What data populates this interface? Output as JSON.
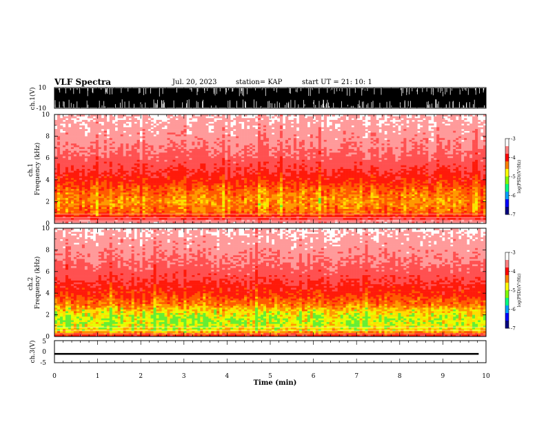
{
  "header": {
    "title": "VLF Spectra",
    "date": "Jul. 20, 2023",
    "station": "station= KAP",
    "start": "start UT =  21: 10: 1"
  },
  "chart_data": [
    {
      "type": "line",
      "name": "ch1-waveform",
      "ylabel": "ch.1(V)",
      "ylim": [
        -10,
        10
      ],
      "yticks": [
        "10",
        "-10"
      ],
      "xlim": [
        0,
        10
      ],
      "note_style": "saturated",
      "color": "#000000"
    },
    {
      "type": "heatmap",
      "name": "ch1-spectrogram",
      "ylabel": "ch.1\nFrequency (kHz)",
      "ylim": [
        0,
        10
      ],
      "yticks": [
        "0",
        "2",
        "4",
        "6",
        "8",
        "10"
      ],
      "xlim": [
        0,
        10
      ],
      "colorbar": {
        "label": "log(PSD)(V²/Hz)",
        "range": [
          -7,
          -3
        ],
        "ticks": [
          "-3",
          "-4",
          "-5",
          "-6",
          "-7"
        ],
        "colors": [
          "#000080",
          "#0000ff",
          "#00a0ff",
          "#00ff80",
          "#80ff00",
          "#ffff00",
          "#ff8000",
          "#ff0000",
          "#ff8080",
          "#ffffff"
        ]
      },
      "profile": [
        {
          "f": 0.0,
          "level": 0.15
        },
        {
          "f": 0.5,
          "level": 0.55
        },
        {
          "f": 1.0,
          "level": 0.72
        },
        {
          "f": 1.5,
          "level": 0.76
        },
        {
          "f": 2.0,
          "level": 0.78
        },
        {
          "f": 2.5,
          "level": 0.76
        },
        {
          "f": 3.0,
          "level": 0.72
        },
        {
          "f": 3.5,
          "level": 0.66
        },
        {
          "f": 4.0,
          "level": 0.6
        },
        {
          "f": 5.0,
          "level": 0.48
        },
        {
          "f": 6.0,
          "level": 0.36
        },
        {
          "f": 7.0,
          "level": 0.28
        },
        {
          "f": 8.0,
          "level": 0.22
        },
        {
          "f": 9.0,
          "level": 0.16
        },
        {
          "f": 10.0,
          "level": 0.1
        }
      ]
    },
    {
      "type": "heatmap",
      "name": "ch2-spectrogram",
      "ylabel": "ch.2\nFrequency (kHz)",
      "ylim": [
        0,
        10
      ],
      "yticks": [
        "0",
        "2",
        "4",
        "6",
        "8",
        "10"
      ],
      "xlim": [
        0,
        10
      ],
      "colorbar": {
        "label": "log(PSD)(V²/Hz)",
        "range": [
          -7,
          -3
        ],
        "ticks": [
          "-3",
          "-4",
          "-5",
          "-6",
          "-7"
        ],
        "colors": [
          "#000080",
          "#0000ff",
          "#00a0ff",
          "#00ff80",
          "#80ff00",
          "#ffff00",
          "#ff8000",
          "#ff0000",
          "#ff8080",
          "#ffffff"
        ]
      },
      "profile": [
        {
          "f": 0.0,
          "level": 0.5
        },
        {
          "f": 0.5,
          "level": 0.86
        },
        {
          "f": 1.0,
          "level": 0.92
        },
        {
          "f": 1.5,
          "level": 0.94
        },
        {
          "f": 2.0,
          "level": 0.9
        },
        {
          "f": 2.5,
          "level": 0.84
        },
        {
          "f": 3.0,
          "level": 0.74
        },
        {
          "f": 3.5,
          "level": 0.68
        },
        {
          "f": 4.0,
          "level": 0.62
        },
        {
          "f": 5.0,
          "level": 0.5
        },
        {
          "f": 6.0,
          "level": 0.38
        },
        {
          "f": 7.0,
          "level": 0.3
        },
        {
          "f": 8.0,
          "level": 0.23
        },
        {
          "f": 9.0,
          "level": 0.17
        },
        {
          "f": 10.0,
          "level": 0.1
        }
      ]
    },
    {
      "type": "line",
      "name": "ch3-waveform",
      "ylabel": "ch.3(V)",
      "ylim": [
        -5,
        5
      ],
      "yticks": [
        "5",
        "0",
        "-5"
      ],
      "xlim": [
        0,
        10
      ],
      "baseline": -1,
      "amplitude": 0.4,
      "color": "#000000"
    }
  ],
  "xaxis": {
    "label": "Time (min)",
    "ticks": [
      "0",
      "1",
      "2",
      "3",
      "4",
      "5",
      "6",
      "7",
      "8",
      "9",
      "10"
    ],
    "range": [
      0,
      10
    ]
  }
}
